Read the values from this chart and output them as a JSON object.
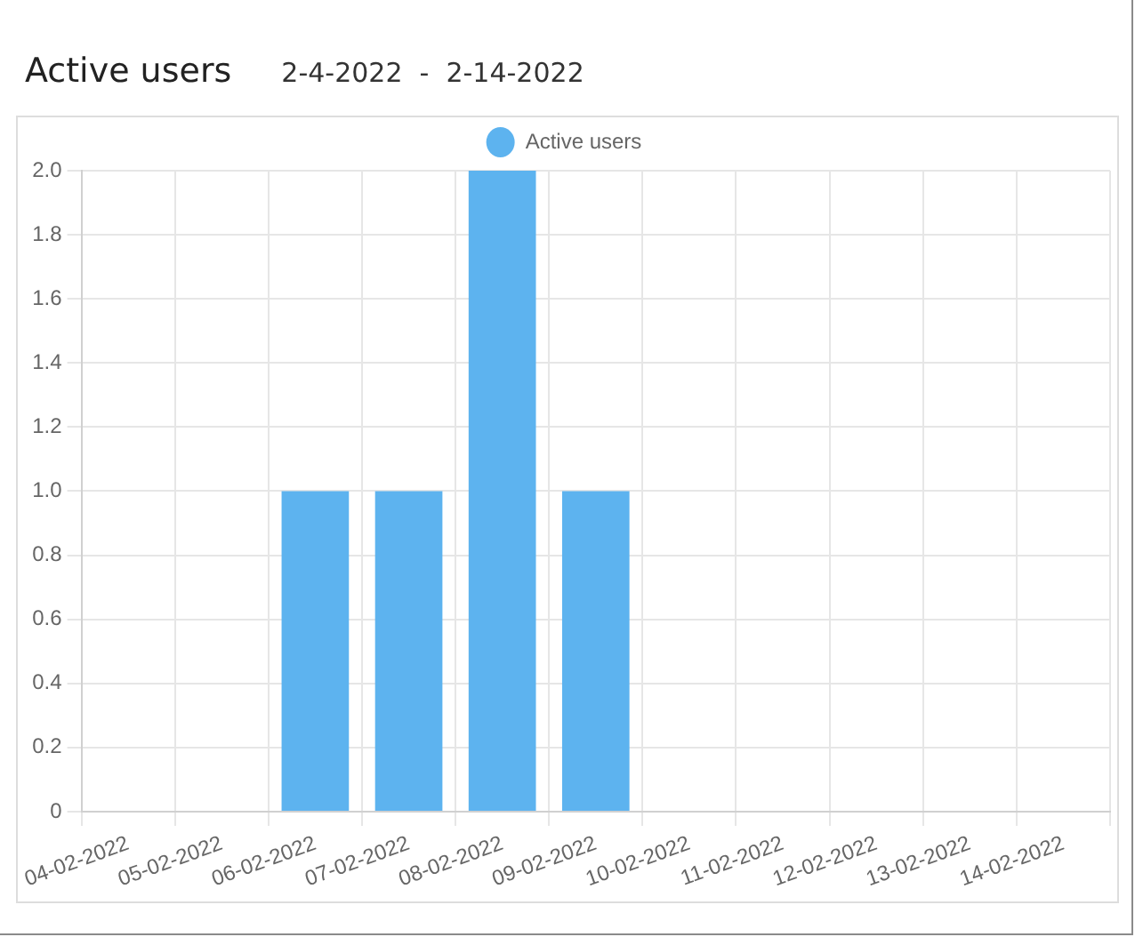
{
  "chart_data": {
    "type": "bar",
    "title": "Active users",
    "subtitle": "2-4-2022  -  2-14-2022",
    "categories": [
      "04-02-2022",
      "05-02-2022",
      "06-02-2022",
      "07-02-2022",
      "08-02-2022",
      "09-02-2022",
      "10-02-2022",
      "11-02-2022",
      "12-02-2022",
      "13-02-2022",
      "14-02-2022"
    ],
    "series": [
      {
        "name": "Active users",
        "color": "#5db3ef",
        "values": [
          0,
          0,
          1,
          1,
          2,
          1,
          0,
          0,
          0,
          0,
          0
        ]
      }
    ],
    "ylim": [
      0,
      2
    ],
    "yticks": [
      0,
      0.2,
      0.4,
      0.6,
      0.8,
      {
        "value": 1,
        "label": "1.0"
      },
      1.2,
      1.4,
      1.6,
      1.8,
      {
        "value": 2,
        "label": "2.0"
      }
    ],
    "grid": true,
    "legend": "top"
  }
}
